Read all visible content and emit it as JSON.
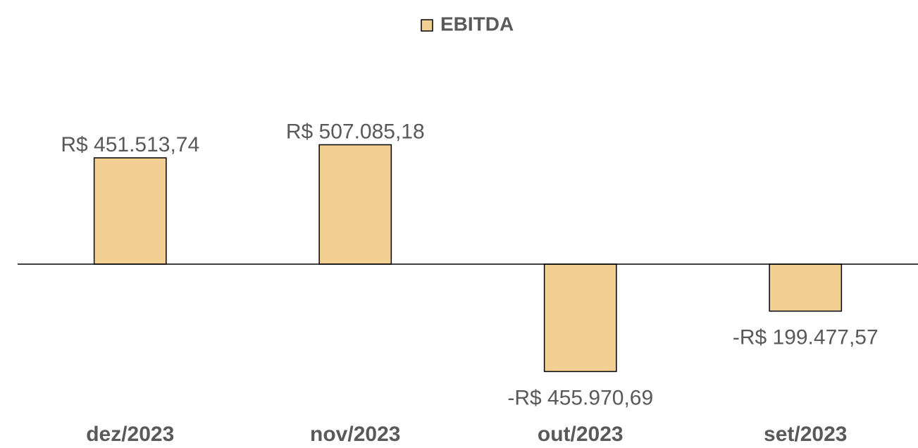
{
  "chart_data": {
    "type": "bar",
    "categories": [
      "dez/2023",
      "nov/2023",
      "out/2023",
      "set/2023"
    ],
    "series": [
      {
        "name": "EBITDA",
        "color": "#f2cf92",
        "values": [
          451513.74,
          507085.18,
          -455970.69,
          -199477.57
        ],
        "value_labels": [
          "R$ 451.513,74",
          "R$ 507.085,18",
          "-R$ 455.970,69",
          "-R$ 199.477,57"
        ]
      }
    ],
    "ylim": [
      -700000,
      700000
    ],
    "legend": "top"
  }
}
